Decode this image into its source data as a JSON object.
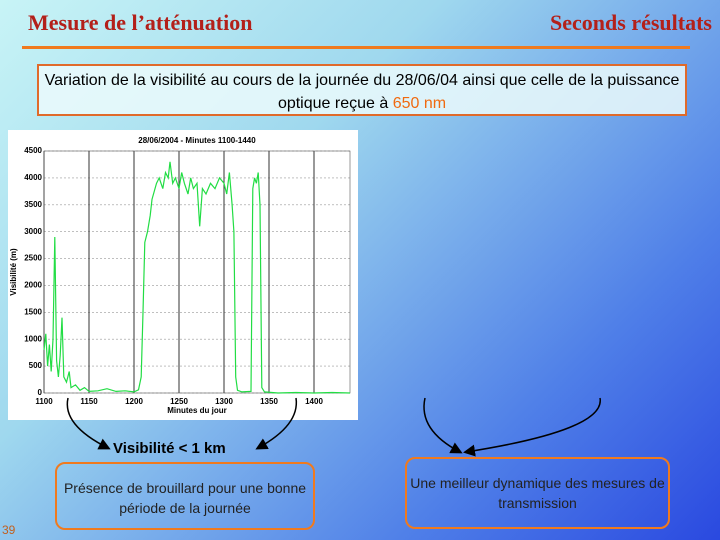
{
  "header": {
    "left": "Mesure de l’atténuation",
    "right": "Seconds résultats"
  },
  "subtitle": {
    "text": "Variation de la visibilité au cours de la journée du 28/06/04 ainsi que celle de la puissance optique reçue à ",
    "highlight": "650 nm"
  },
  "chart_data": {
    "type": "line",
    "title": "28/06/2004 - Minutes 1100-1440",
    "x_label": "Minutes du jour",
    "y_label": "Visibilité (m)",
    "x": [
      1100,
      1102,
      1104,
      1106,
      1108,
      1110,
      1112,
      1114,
      1116,
      1118,
      1120,
      1122,
      1125,
      1128,
      1130,
      1135,
      1140,
      1145,
      1150,
      1160,
      1170,
      1180,
      1190,
      1200,
      1205,
      1208,
      1210,
      1212,
      1215,
      1218,
      1220,
      1225,
      1228,
      1232,
      1235,
      1238,
      1240,
      1243,
      1246,
      1250,
      1253,
      1256,
      1260,
      1263,
      1266,
      1270,
      1273,
      1276,
      1280,
      1285,
      1290,
      1295,
      1300,
      1303,
      1306,
      1309,
      1311,
      1313,
      1315,
      1320,
      1330,
      1332,
      1334,
      1336,
      1338,
      1340,
      1342,
      1345,
      1360,
      1380,
      1400,
      1420,
      1440
    ],
    "values": [
      800,
      1100,
      500,
      900,
      400,
      1000,
      2900,
      600,
      300,
      700,
      1400,
      300,
      200,
      400,
      100,
      150,
      50,
      100,
      30,
      40,
      80,
      30,
      40,
      20,
      60,
      300,
      1500,
      2800,
      3000,
      3300,
      3600,
      3900,
      4000,
      3800,
      4100,
      4000,
      4300,
      3900,
      4000,
      3800,
      4100,
      3900,
      3700,
      4000,
      3800,
      3900,
      3100,
      3800,
      3700,
      3900,
      3800,
      4000,
      3900,
      3700,
      4100,
      3500,
      3000,
      300,
      50,
      20,
      30,
      3800,
      4000,
      3900,
      4100,
      3500,
      100,
      20,
      0,
      10,
      0,
      10,
      0
    ],
    "color": "#22dd44",
    "xlim": [
      1100,
      1440
    ],
    "ylim": [
      0,
      4500
    ],
    "xticks": [
      1100,
      1150,
      1200,
      1250,
      1300,
      1350,
      1400
    ],
    "yticks": [
      0,
      500,
      1000,
      1500,
      2000,
      2500,
      3000,
      3500,
      4000,
      4500
    ],
    "grid": true
  },
  "annotation": "Visibilité < 1 km",
  "boxes": [
    "Présence de brouillard pour une bonne période de la journée",
    "Une meilleur dynamique des mesures de transmission"
  ],
  "page_number": "39"
}
